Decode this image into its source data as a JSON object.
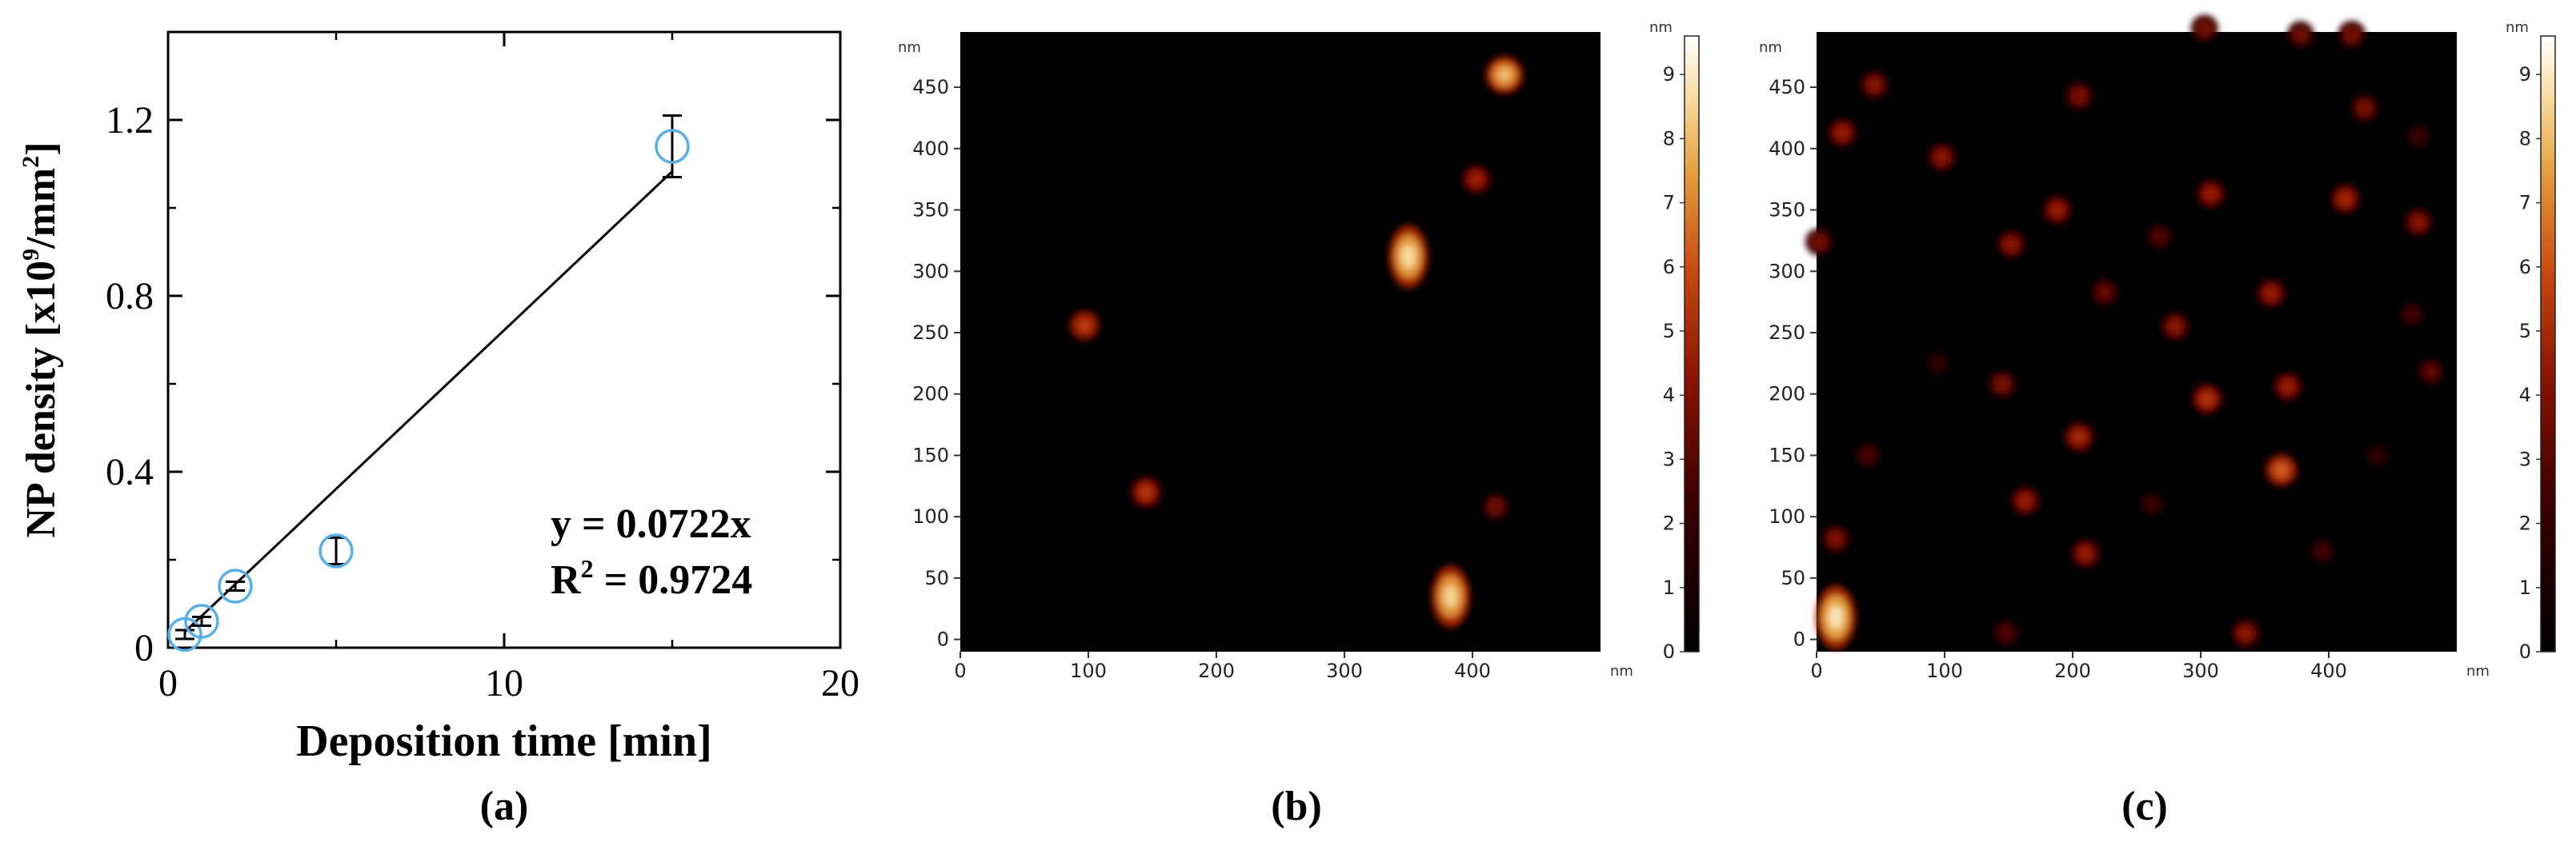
{
  "chart_data": [
    {
      "panel_label": "(a)",
      "type": "scatter",
      "xlabel": "Deposition time [min]",
      "ylabel_prefix": "NP density [x10",
      "ylabel_sup1": "9",
      "ylabel_mid": "/mm",
      "ylabel_sup2": "2",
      "ylabel_suffix": "]",
      "xlim": [
        0,
        20
      ],
      "ylim": [
        0,
        1.4
      ],
      "xticks": [
        0,
        10,
        20
      ],
      "xtick_labels": [
        "0",
        "10",
        "20"
      ],
      "yticks": [
        0,
        0.4,
        0.8,
        1.2
      ],
      "ytick_labels": [
        "0",
        "0.4",
        "0.8",
        "1.2"
      ],
      "points": [
        {
          "x": 0.5,
          "y": 0.03,
          "err": 0.01
        },
        {
          "x": 1.0,
          "y": 0.06,
          "err": 0.01
        },
        {
          "x": 2.0,
          "y": 0.14,
          "err": 0.01
        },
        {
          "x": 5.0,
          "y": 0.22,
          "err": 0.03
        },
        {
          "x": 15.0,
          "y": 1.14,
          "err": 0.07
        }
      ],
      "fit": {
        "slope": 0.0722,
        "x_range": [
          0.5,
          15
        ]
      },
      "equation": "y = 0.0722x",
      "r2_prefix": "R",
      "r2_sup": "2",
      "r2_suffix": " = 0.9724",
      "marker_color": "#5aaee6",
      "line_color": "#000000",
      "grid": false
    },
    {
      "panel_label": "(b)",
      "type": "heatmap",
      "unit": "nm",
      "xlim": [
        0,
        500
      ],
      "ylim": [
        -10,
        495
      ],
      "xticks": [
        0,
        100,
        200,
        300,
        400
      ],
      "yticks": [
        0,
        50,
        100,
        150,
        200,
        250,
        300,
        350,
        400,
        450
      ],
      "colorbar_ticks": [
        0,
        1,
        2,
        3,
        4,
        5,
        6,
        7,
        8,
        9
      ],
      "colorbar_max": 9.6,
      "colormap": "afmhot",
      "particles": [
        {
          "x": 97,
          "y": 256,
          "h": 5.6
        },
        {
          "x": 145,
          "y": 120,
          "h": 5.4
        },
        {
          "x": 350,
          "y": 312,
          "h": 8.6
        },
        {
          "x": 403,
          "y": 375,
          "h": 4.8
        },
        {
          "x": 425,
          "y": 460,
          "h": 8.0
        },
        {
          "x": 418,
          "y": 108,
          "h": 3.6
        },
        {
          "x": 383,
          "y": 35,
          "h": 8.4
        }
      ]
    },
    {
      "panel_label": "(c)",
      "type": "heatmap",
      "unit": "nm",
      "xlim": [
        0,
        500
      ],
      "ylim": [
        -10,
        495
      ],
      "xticks": [
        0,
        100,
        200,
        300,
        400
      ],
      "yticks": [
        0,
        50,
        100,
        150,
        200,
        250,
        300,
        350,
        400,
        450
      ],
      "colorbar_ticks": [
        0,
        1,
        2,
        3,
        4,
        5,
        6,
        7,
        8,
        9
      ],
      "colorbar_max": 9.6,
      "colormap": "afmhot",
      "particles": [
        {
          "x": 45,
          "y": 452,
          "h": 4.2
        },
        {
          "x": 20,
          "y": 413,
          "h": 4.6
        },
        {
          "x": 98,
          "y": 393,
          "h": 4.3
        },
        {
          "x": 205,
          "y": 443,
          "h": 4.0
        },
        {
          "x": 303,
          "y": 498,
          "h": 3.8
        },
        {
          "x": 378,
          "y": 493,
          "h": 3.6
        },
        {
          "x": 418,
          "y": 493,
          "h": 3.9
        },
        {
          "x": 428,
          "y": 433,
          "h": 3.9
        },
        {
          "x": 188,
          "y": 350,
          "h": 4.6
        },
        {
          "x": 308,
          "y": 363,
          "h": 4.6
        },
        {
          "x": 413,
          "y": 359,
          "h": 4.9
        },
        {
          "x": 470,
          "y": 340,
          "h": 4.2
        },
        {
          "x": 2,
          "y": 324,
          "h": 3.8
        },
        {
          "x": 152,
          "y": 322,
          "h": 4.3
        },
        {
          "x": 268,
          "y": 328,
          "h": 3.0
        },
        {
          "x": 225,
          "y": 283,
          "h": 3.5
        },
        {
          "x": 355,
          "y": 282,
          "h": 4.6
        },
        {
          "x": 280,
          "y": 255,
          "h": 4.3
        },
        {
          "x": 145,
          "y": 208,
          "h": 3.9
        },
        {
          "x": 305,
          "y": 196,
          "h": 5.3
        },
        {
          "x": 368,
          "y": 206,
          "h": 4.6
        },
        {
          "x": 205,
          "y": 165,
          "h": 5.0
        },
        {
          "x": 363,
          "y": 138,
          "h": 6.3
        },
        {
          "x": 163,
          "y": 113,
          "h": 4.6
        },
        {
          "x": 210,
          "y": 70,
          "h": 4.6
        },
        {
          "x": 15,
          "y": 82,
          "h": 4.0
        },
        {
          "x": 15,
          "y": 18,
          "h": 8.8
        },
        {
          "x": 335,
          "y": 5,
          "h": 4.4
        },
        {
          "x": 480,
          "y": 218,
          "h": 3.3
        },
        {
          "x": 40,
          "y": 150,
          "h": 2.8
        },
        {
          "x": 465,
          "y": 265,
          "h": 2.6
        },
        {
          "x": 395,
          "y": 72,
          "h": 2.6
        },
        {
          "x": 148,
          "y": 5,
          "h": 3.0
        },
        {
          "x": 262,
          "y": 110,
          "h": 2.4
        },
        {
          "x": 470,
          "y": 410,
          "h": 2.4
        },
        {
          "x": 95,
          "y": 225,
          "h": 2.0
        },
        {
          "x": 438,
          "y": 150,
          "h": 2.0
        }
      ]
    }
  ]
}
